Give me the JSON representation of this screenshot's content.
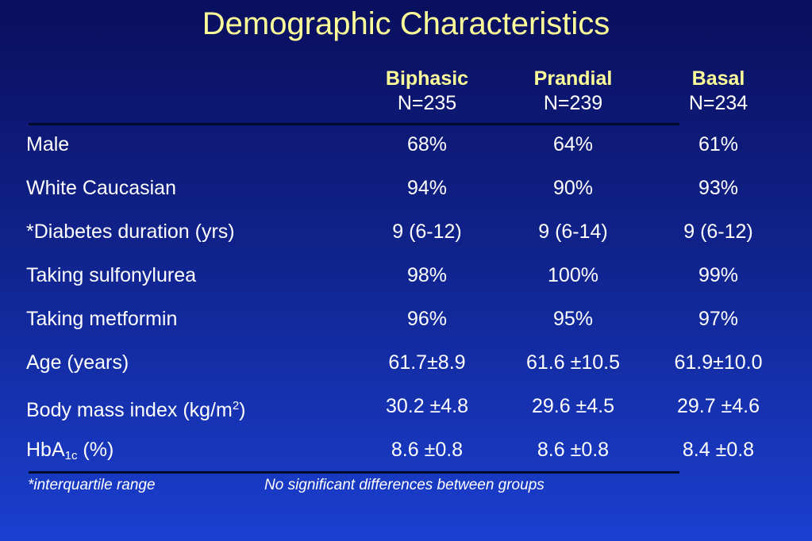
{
  "title": "Demographic Characteristics",
  "columns": [
    {
      "name": "Biphasic",
      "n": "N=235"
    },
    {
      "name": "Prandial",
      "n": "N=239"
    },
    {
      "name": "Basal",
      "n": "N=234"
    }
  ],
  "rows": [
    {
      "label": "Male",
      "values": [
        "68%",
        "64%",
        "61%"
      ]
    },
    {
      "label": "White Caucasian",
      "values": [
        "94%",
        "90%",
        "93%"
      ]
    },
    {
      "label": "*Diabetes duration (yrs)",
      "values": [
        "9 (6-12)",
        "9 (6-14)",
        "9 (6-12)"
      ]
    },
    {
      "label": "Taking sulfonylurea",
      "values": [
        "98%",
        "100%",
        "99%"
      ]
    },
    {
      "label": "Taking metformin",
      "values": [
        "96%",
        "95%",
        "97%"
      ]
    },
    {
      "label": "Age (years)",
      "values": [
        "61.7±8.9",
        "61.6 ±10.5",
        "61.9±10.0"
      ]
    },
    {
      "label_main": "Body mass index (kg/m",
      "label_sup": "2",
      "label_tail": ")",
      "values": [
        "30.2 ±4.8",
        "29.6 ±4.5",
        "29.7 ±4.6"
      ]
    },
    {
      "label_main": "HbA",
      "label_sub": "1c",
      "label_tail": " (%)",
      "values": [
        "8.6 ±0.8",
        "8.6 ±0.8",
        "8.4 ±0.8"
      ]
    }
  ],
  "footnotes": {
    "left": "*interquartile range",
    "right": "No significant differences between groups"
  }
}
